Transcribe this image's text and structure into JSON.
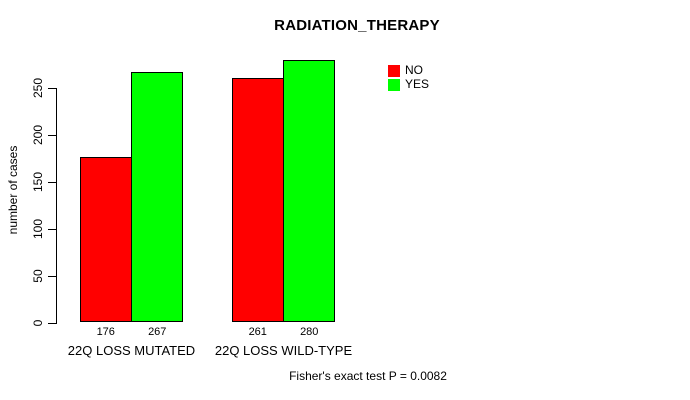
{
  "page": {
    "background": "#ffffff",
    "text_color": "#000000"
  },
  "chart_data": {
    "type": "bar",
    "title": "RADIATION_THERAPY",
    "xlabel": "",
    "ylabel": "number of cases",
    "categories": [
      "22Q LOSS MUTATED",
      "22Q LOSS WILD-TYPE"
    ],
    "series": [
      {
        "name": "NO",
        "color": "#ff0000",
        "values": [
          176,
          261
        ]
      },
      {
        "name": "YES",
        "color": "#00ff00",
        "values": [
          267,
          280
        ]
      }
    ],
    "bar_value_labels": [
      [
        "176",
        "261"
      ],
      [
        "267",
        "280"
      ]
    ],
    "yticks": [
      0,
      50,
      100,
      150,
      200,
      250
    ],
    "ylim": [
      0,
      285
    ],
    "grid": false,
    "legend": {
      "position": "top-right",
      "items": [
        "NO",
        "YES"
      ],
      "box": false
    },
    "annotation": "Fisher's exact test P = 0.0082",
    "axis_color": "#000000",
    "bar_border_color": "#000000"
  }
}
